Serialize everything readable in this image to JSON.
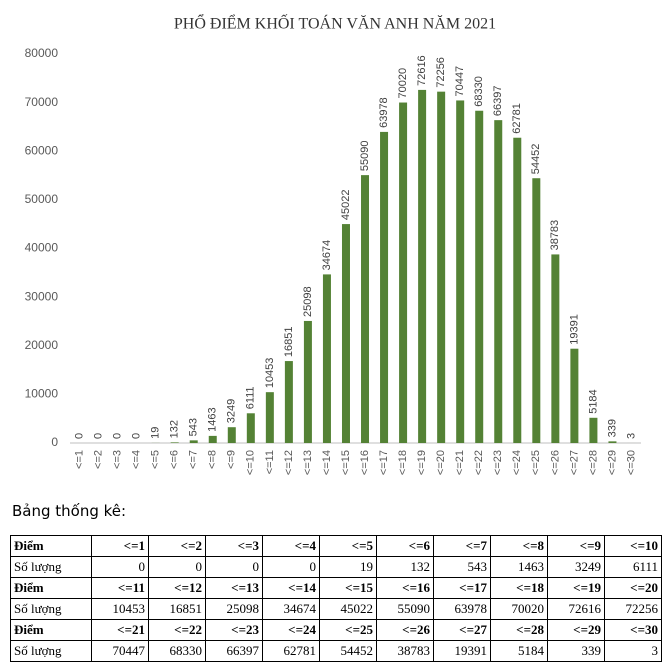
{
  "chart_data": {
    "type": "bar",
    "title": "PHỔ ĐIỂM KHỐI TOÁN VĂN ANH NĂM 2021",
    "categories": [
      "<=1",
      "<=2",
      "<=3",
      "<=4",
      "<=5",
      "<=6",
      "<=7",
      "<=8",
      "<=9",
      "<=10",
      "<=11",
      "<=12",
      "<=13",
      "<=14",
      "<=15",
      "<=16",
      "<=17",
      "<=18",
      "<=19",
      "<=20",
      "<=21",
      "<=22",
      "<=23",
      "<=24",
      "<=25",
      "<=26",
      "<=27",
      "<=28",
      "<=29",
      "<=30"
    ],
    "values": [
      0,
      0,
      0,
      0,
      19,
      132,
      543,
      1463,
      3249,
      6111,
      10453,
      16851,
      25098,
      34674,
      45022,
      55090,
      63978,
      70020,
      72616,
      72256,
      70447,
      68330,
      66397,
      62781,
      54452,
      38783,
      19391,
      5184,
      339,
      3
    ],
    "color": "#548235",
    "ylim": [
      0,
      80000
    ],
    "yticks": [
      0,
      10000,
      20000,
      30000,
      40000,
      50000,
      60000,
      70000,
      80000
    ],
    "grid": false,
    "data_labels": true
  },
  "table": {
    "title": "Bảng thống kê:",
    "row_labels": [
      "Điểm",
      "Số lượng"
    ]
  }
}
